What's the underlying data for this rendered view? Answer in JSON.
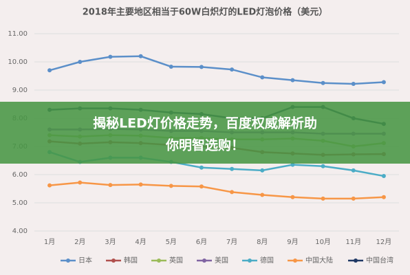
{
  "chart_data": {
    "type": "line",
    "title": "2018年主要地区相当于60W白炽灯的LED灯泡价格（美元）",
    "categories": [
      "1月",
      "2月",
      "3月",
      "4月",
      "5月",
      "6月",
      "7月",
      "8月",
      "9月",
      "10月",
      "11月",
      "12月"
    ],
    "series": [
      {
        "name": "日本",
        "color": "#5b8fc9",
        "values": [
          9.7,
          10.0,
          10.18,
          10.2,
          9.83,
          9.82,
          9.73,
          9.45,
          9.35,
          9.25,
          9.22,
          9.28
        ]
      },
      {
        "name": "韩国",
        "color": "#b0504d",
        "values": [
          7.18,
          7.1,
          7.15,
          7.12,
          7.05,
          7.0,
          6.95,
          6.8,
          6.75,
          6.7,
          6.72,
          6.73
        ]
      },
      {
        "name": "英国",
        "color": "#9bbb59",
        "values": [
          7.4,
          7.35,
          7.4,
          7.38,
          7.3,
          7.3,
          7.25,
          7.25,
          7.28,
          7.2,
          7.0,
          7.12
        ]
      },
      {
        "name": "美国",
        "color": "#8064a2",
        "values": [
          7.6,
          7.6,
          7.62,
          7.6,
          7.55,
          7.55,
          7.5,
          7.5,
          7.5,
          7.45,
          7.45,
          7.45
        ]
      },
      {
        "name": "德国",
        "color": "#4bacc6",
        "values": [
          6.8,
          6.45,
          6.6,
          6.6,
          6.45,
          6.25,
          6.2,
          6.15,
          6.35,
          6.3,
          6.15,
          5.95
        ]
      },
      {
        "name": "中国大陆",
        "color": "#f79646",
        "values": [
          5.62,
          5.72,
          5.63,
          5.65,
          5.6,
          5.58,
          5.38,
          5.28,
          5.2,
          5.15,
          5.15,
          5.2
        ]
      },
      {
        "name": "中国台湾",
        "color": "#1f3864",
        "values": [
          8.3,
          8.35,
          8.35,
          8.3,
          8.2,
          8.15,
          8.0,
          8.0,
          8.4,
          8.4,
          8.0,
          7.8
        ]
      }
    ],
    "ylim": [
      4,
      11
    ],
    "yticks": [
      {
        "value": 4,
        "label": "4.00"
      },
      {
        "value": 5,
        "label": "5.00"
      },
      {
        "value": 6,
        "label": "6.00"
      },
      {
        "value": 7,
        "label": "7.00"
      },
      {
        "value": 8,
        "label": "8.00"
      },
      {
        "value": 9,
        "label": "9.00"
      },
      {
        "value": 10,
        "label": "10.00"
      },
      {
        "value": 11,
        "label": "11.00"
      }
    ],
    "grid": true
  },
  "banner": {
    "lines": [
      "揭秘LED灯价格走势，百度权威解析助",
      "你明智选购！"
    ]
  }
}
